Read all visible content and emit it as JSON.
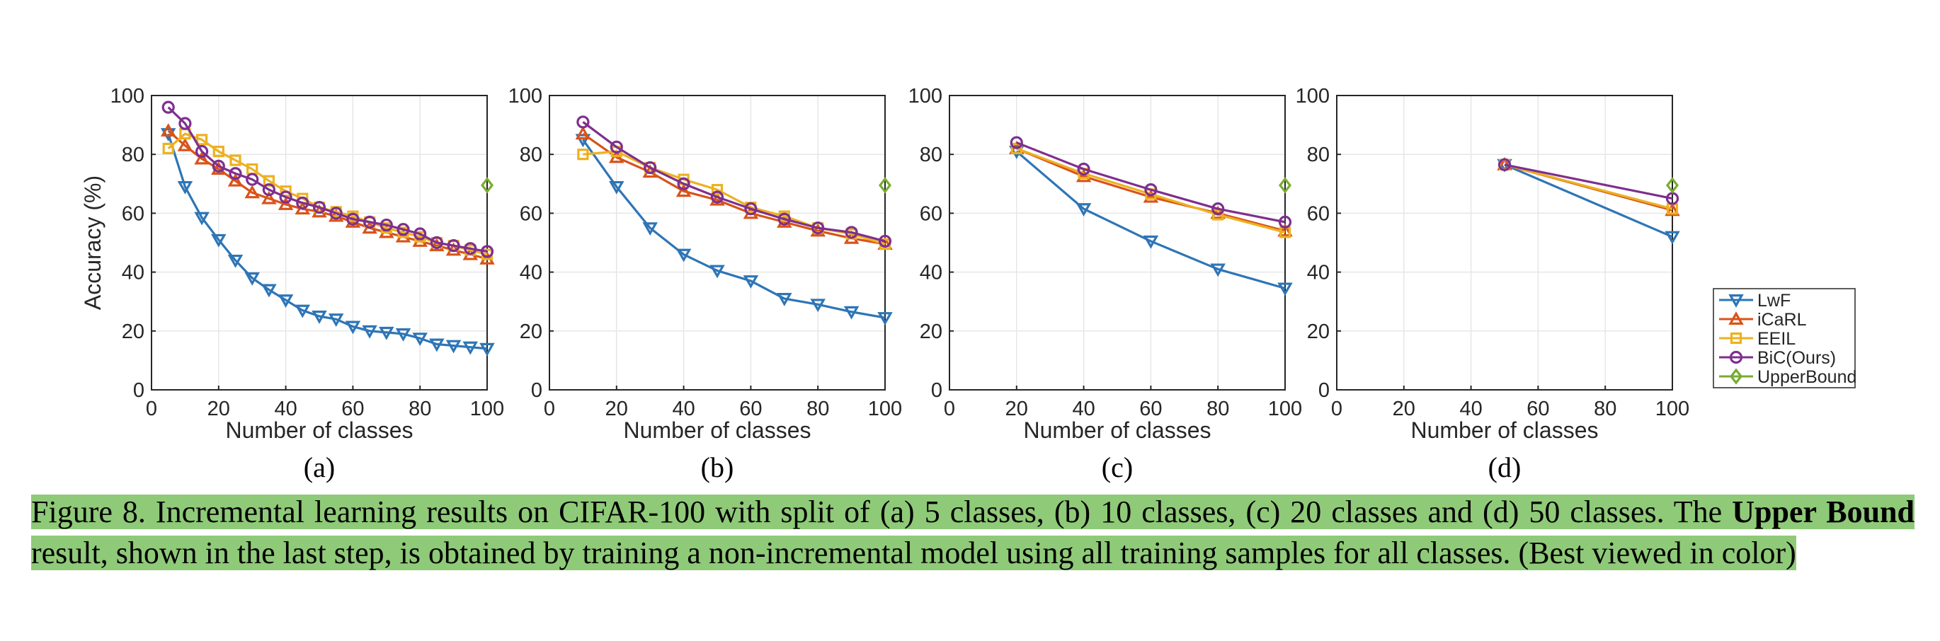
{
  "figure": {
    "caption": {
      "part1": "Figure 8. Incremental learning results on CIFAR-100 with split of (a) 5 classes, (b) 10 classes, (c) 20 classes and (d) 50 classes. The ",
      "bold": "Upper Bound",
      "part2": " result, shown in the last step, is obtained by training a non-incremental model using all training samples for all classes.  (Best viewed in color)"
    },
    "highlight_color": "#8fca78"
  },
  "colors": {
    "LwF": "#2e75b6",
    "iCaRL": "#d95319",
    "EEIL": "#edb120",
    "BiC(Ours)": "#7e2f8e",
    "UpperBound": "#77ac30",
    "grid": "#e6e6e6",
    "axis": "#262626"
  },
  "legend": {
    "entries": [
      {
        "name": "LwF",
        "marker": "triangle-down"
      },
      {
        "name": "iCaRL",
        "marker": "triangle-up"
      },
      {
        "name": "EEIL",
        "marker": "square"
      },
      {
        "name": "BiC(Ours)",
        "marker": "circle"
      },
      {
        "name": "UpperBound",
        "marker": "diamond"
      }
    ],
    "placement": "right of panel (d)"
  },
  "chart_data": [
    {
      "type": "line",
      "panel_label": "(a)",
      "xlabel": "Number of classes",
      "ylabel": "Accuracy (%)",
      "xlim": [
        0,
        100
      ],
      "ylim": [
        0,
        100
      ],
      "xticks": [
        "0",
        "20",
        "40",
        "60",
        "80",
        "100"
      ],
      "yticks": [
        "0",
        "20",
        "40",
        "60",
        "80",
        "100"
      ],
      "grid": true,
      "series": [
        {
          "name": "LwF",
          "x": [
            5,
            10,
            15,
            20,
            25,
            30,
            35,
            40,
            45,
            50,
            55,
            60,
            65,
            70,
            75,
            80,
            85,
            90,
            95,
            100
          ],
          "y": [
            87,
            69,
            58.5,
            51,
            44,
            38,
            34,
            30.5,
            27,
            25,
            24,
            21.5,
            20,
            19.5,
            19,
            17.5,
            15.5,
            15,
            14.5,
            14
          ]
        },
        {
          "name": "iCaRL",
          "x": [
            5,
            10,
            15,
            20,
            25,
            30,
            35,
            40,
            45,
            50,
            55,
            60,
            65,
            70,
            75,
            80,
            85,
            90,
            95,
            100
          ],
          "y": [
            88,
            83,
            78.5,
            75,
            71,
            67,
            65,
            63,
            61.5,
            60.5,
            59,
            57,
            55,
            53.5,
            52,
            50.5,
            49,
            47.5,
            46,
            44.5
          ]
        },
        {
          "name": "EEIL",
          "x": [
            5,
            10,
            15,
            20,
            25,
            30,
            35,
            40,
            45,
            50,
            55,
            60,
            65,
            70,
            75,
            80,
            85,
            90,
            95,
            100
          ],
          "y": [
            82,
            87,
            85,
            81,
            78,
            75,
            71,
            67.5,
            65,
            62,
            60.5,
            59,
            57,
            55,
            53.5,
            52,
            50,
            49,
            47.5,
            46
          ]
        },
        {
          "name": "BiC(Ours)",
          "x": [
            5,
            10,
            15,
            20,
            25,
            30,
            35,
            40,
            45,
            50,
            55,
            60,
            65,
            70,
            75,
            80,
            85,
            90,
            95,
            100
          ],
          "y": [
            96,
            90.5,
            81,
            76,
            73.5,
            71.5,
            68,
            65.5,
            63.5,
            62,
            60,
            58,
            57,
            56,
            54.5,
            53,
            50,
            49,
            48,
            47
          ]
        },
        {
          "name": "UpperBound",
          "x": [
            100
          ],
          "y": [
            69.5
          ]
        }
      ]
    },
    {
      "type": "line",
      "panel_label": "(b)",
      "xlabel": "Number of classes",
      "ylabel": "",
      "xlim": [
        0,
        100
      ],
      "ylim": [
        0,
        100
      ],
      "xticks": [
        "0",
        "20",
        "40",
        "60",
        "80",
        "100"
      ],
      "yticks": [
        "0",
        "20",
        "40",
        "60",
        "80",
        "100"
      ],
      "grid": true,
      "series": [
        {
          "name": "LwF",
          "x": [
            10,
            20,
            30,
            40,
            50,
            60,
            70,
            80,
            90,
            100
          ],
          "y": [
            85,
            69,
            55,
            46,
            40.5,
            37,
            31,
            29,
            26.5,
            24.5
          ]
        },
        {
          "name": "iCaRL",
          "x": [
            10,
            20,
            30,
            40,
            50,
            60,
            70,
            80,
            90,
            100
          ],
          "y": [
            87,
            79,
            74,
            67.5,
            64.5,
            60,
            57,
            54,
            51.5,
            49.5
          ]
        },
        {
          "name": "EEIL",
          "x": [
            10,
            20,
            30,
            40,
            50,
            60,
            70,
            80,
            90,
            100
          ],
          "y": [
            80,
            81,
            75.5,
            71.5,
            68,
            62,
            59,
            55,
            53,
            49.5
          ]
        },
        {
          "name": "BiC(Ours)",
          "x": [
            10,
            20,
            30,
            40,
            50,
            60,
            70,
            80,
            90,
            100
          ],
          "y": [
            91,
            82.5,
            75.5,
            70,
            65.5,
            61.5,
            58,
            55,
            53.5,
            50.5
          ]
        },
        {
          "name": "UpperBound",
          "x": [
            100
          ],
          "y": [
            69.5
          ]
        }
      ]
    },
    {
      "type": "line",
      "panel_label": "(c)",
      "xlabel": "Number of classes",
      "ylabel": "",
      "xlim": [
        0,
        100
      ],
      "ylim": [
        0,
        100
      ],
      "xticks": [
        "0",
        "20",
        "40",
        "60",
        "80",
        "100"
      ],
      "yticks": [
        "0",
        "20",
        "40",
        "60",
        "80",
        "100"
      ],
      "grid": true,
      "series": [
        {
          "name": "LwF",
          "x": [
            20,
            40,
            60,
            80,
            100
          ],
          "y": [
            81,
            61.5,
            50.5,
            41,
            34.5
          ]
        },
        {
          "name": "iCaRL",
          "x": [
            20,
            40,
            60,
            80,
            100
          ],
          "y": [
            82,
            72.5,
            65.5,
            60,
            54
          ]
        },
        {
          "name": "EEIL",
          "x": [
            20,
            40,
            60,
            80,
            100
          ],
          "y": [
            82,
            73.5,
            66.5,
            59.5,
            53.5
          ]
        },
        {
          "name": "BiC(Ours)",
          "x": [
            20,
            40,
            60,
            80,
            100
          ],
          "y": [
            84,
            75,
            68,
            61.5,
            57
          ]
        },
        {
          "name": "UpperBound",
          "x": [
            100
          ],
          "y": [
            69.5
          ]
        }
      ]
    },
    {
      "type": "line",
      "panel_label": "(d)",
      "xlabel": "Number of classes",
      "ylabel": "",
      "xlim": [
        0,
        100
      ],
      "ylim": [
        0,
        100
      ],
      "xticks": [
        "0",
        "20",
        "40",
        "60",
        "80",
        "100"
      ],
      "yticks": [
        "0",
        "20",
        "40",
        "60",
        "80",
        "100"
      ],
      "grid": true,
      "series": [
        {
          "name": "LwF",
          "x": [
            50,
            100
          ],
          "y": [
            76.5,
            52
          ]
        },
        {
          "name": "iCaRL",
          "x": [
            50,
            100
          ],
          "y": [
            76.5,
            61
          ]
        },
        {
          "name": "EEIL",
          "x": [
            50,
            100
          ],
          "y": [
            76.5,
            61.5
          ]
        },
        {
          "name": "BiC(Ours)",
          "x": [
            50,
            100
          ],
          "y": [
            76.5,
            65
          ]
        },
        {
          "name": "UpperBound",
          "x": [
            100
          ],
          "y": [
            69.5
          ]
        }
      ]
    }
  ]
}
